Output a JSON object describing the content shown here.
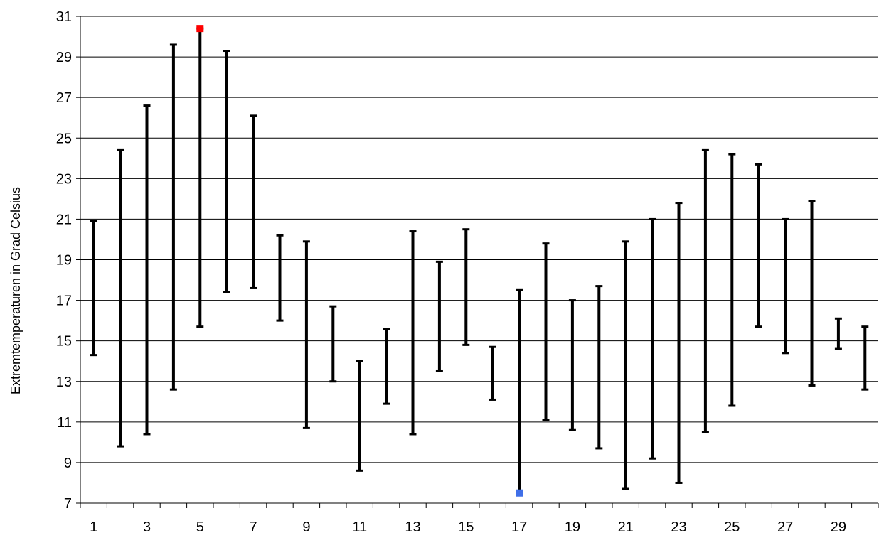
{
  "chart_data": {
    "type": "range-bar",
    "title": "",
    "xlabel": "",
    "ylabel": "Extremtemperaturen in Grad Celsius",
    "ylim": [
      7,
      31
    ],
    "yticks": [
      7,
      9,
      11,
      13,
      15,
      17,
      19,
      21,
      23,
      25,
      27,
      29,
      31
    ],
    "grid": "horizontal",
    "xlim": [
      1,
      30
    ],
    "xtick_labels": [
      1,
      3,
      5,
      7,
      9,
      11,
      13,
      15,
      17,
      19,
      21,
      23,
      25,
      27,
      29
    ],
    "days": [
      1,
      2,
      3,
      4,
      5,
      6,
      7,
      8,
      9,
      10,
      11,
      12,
      13,
      14,
      15,
      16,
      17,
      18,
      19,
      20,
      21,
      22,
      23,
      24,
      25,
      26,
      27,
      28,
      29,
      30
    ],
    "series": [
      {
        "name": "",
        "low": [
          14.3,
          9.8,
          10.4,
          12.6,
          15.7,
          17.4,
          17.6,
          16.0,
          10.7,
          13.0,
          8.6,
          11.9,
          10.4,
          13.5,
          14.8,
          12.1,
          7.5,
          11.1,
          10.6,
          9.7,
          7.7,
          9.2,
          8.0,
          10.5,
          11.8,
          15.7,
          14.4,
          12.8,
          14.6,
          12.6
        ],
        "high": [
          20.9,
          24.4,
          26.6,
          29.6,
          30.4,
          29.3,
          26.1,
          20.2,
          19.9,
          16.7,
          14.0,
          15.6,
          20.4,
          18.9,
          20.5,
          14.7,
          17.5,
          19.8,
          17.0,
          17.7,
          19.9,
          21.0,
          21.8,
          24.4,
          24.2,
          23.7,
          21.0,
          21.9,
          16.1,
          15.7
        ]
      }
    ],
    "markers": [
      {
        "name": "",
        "day": 5,
        "value": 30.4,
        "color": "#ff0000"
      },
      {
        "name": "",
        "day": 17,
        "value": 7.5,
        "color": "#3f6fe8"
      }
    ],
    "colors": {
      "bar": "#000000",
      "grid": "#000000",
      "axis": "#000000"
    }
  }
}
